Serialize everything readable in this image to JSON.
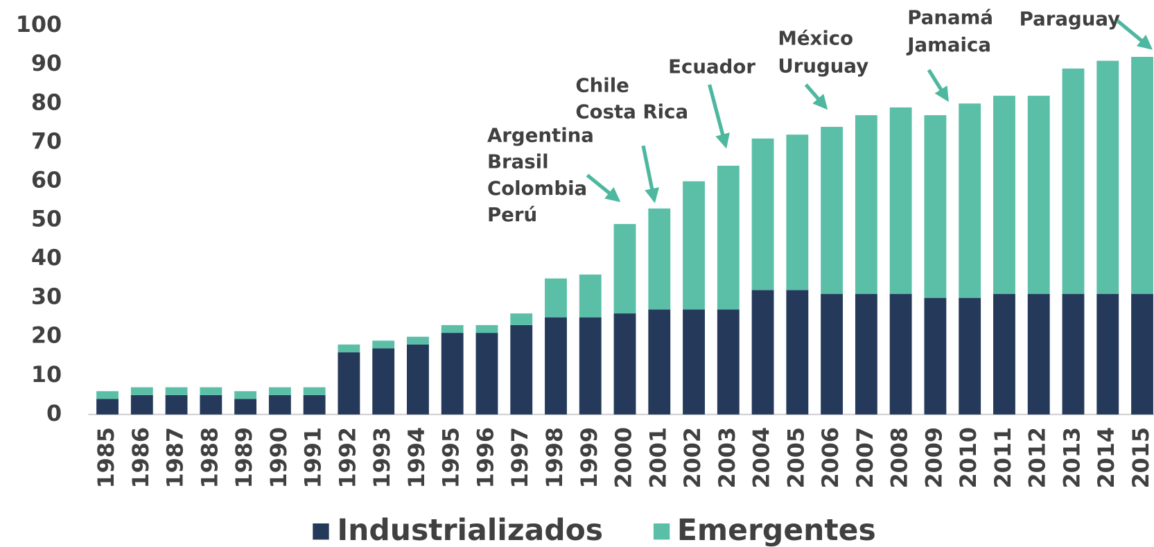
{
  "chart_data": {
    "type": "stacked_bar",
    "categories": [
      "1985",
      "1986",
      "1987",
      "1988",
      "1989",
      "1990",
      "1991",
      "1992",
      "1993",
      "1994",
      "1995",
      "1996",
      "1997",
      "1998",
      "1999",
      "2000",
      "2001",
      "2002",
      "2003",
      "2004",
      "2005",
      "2006",
      "2007",
      "2008",
      "2009",
      "2010",
      "2011",
      "2012",
      "2013",
      "2014",
      "2015"
    ],
    "series": [
      {
        "name": "Industrializados",
        "color": "#253a5a",
        "values": [
          4,
          5,
          5,
          5,
          4,
          5,
          5,
          16,
          17,
          18,
          21,
          21,
          23,
          25,
          25,
          26,
          27,
          27,
          27,
          32,
          32,
          31,
          31,
          31,
          30,
          30,
          31,
          31,
          31,
          31,
          31
        ]
      },
      {
        "name": "Emergentes",
        "color": "#5bbfa8",
        "values": [
          2,
          2,
          2,
          2,
          2,
          2,
          2,
          2,
          2,
          2,
          2,
          2,
          3,
          10,
          11,
          23,
          26,
          33,
          37,
          39,
          40,
          43,
          46,
          48,
          47,
          50,
          51,
          51,
          58,
          60,
          61
        ]
      }
    ],
    "ylim": [
      0,
      100
    ],
    "yticks": [
      0,
      10,
      20,
      30,
      40,
      50,
      60,
      70,
      80,
      90,
      100
    ],
    "annotations": [
      [
        "Argentina",
        "Brasil",
        "Colombia",
        "Perú"
      ],
      [
        "Chile",
        "Costa Rica"
      ],
      [
        "Ecuador"
      ],
      [
        "México",
        "Uruguay"
      ],
      [
        "Panamá",
        "Jamaica"
      ],
      [
        "Paraguay"
      ]
    ]
  }
}
